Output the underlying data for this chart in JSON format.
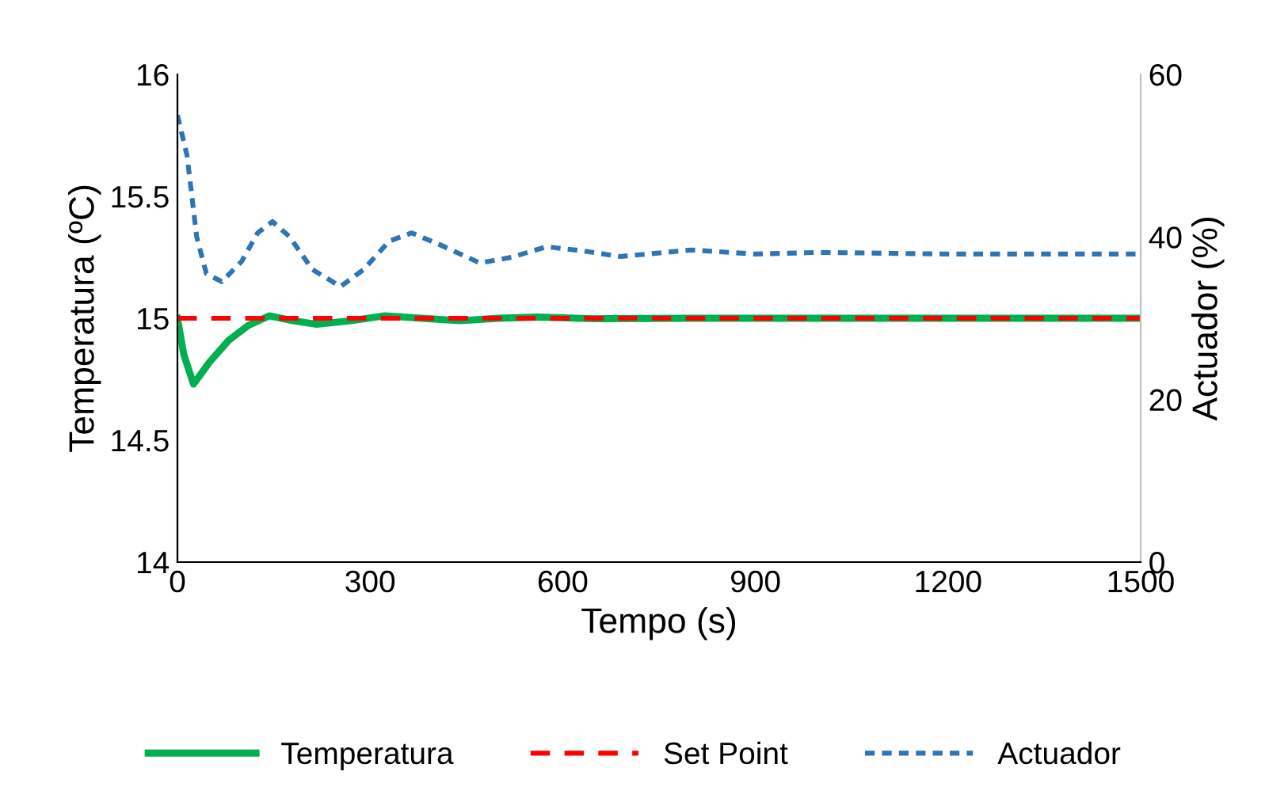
{
  "chart_data": {
    "type": "line",
    "xlabel": "Tempo (s)",
    "ylabel": "Temperatura (ºC)",
    "y2label": "Actuador (%)",
    "xlim": [
      0,
      1500
    ],
    "xticks": [
      0,
      300,
      600,
      900,
      1200,
      1500
    ],
    "ylim": [
      14,
      16
    ],
    "yticks": [
      14,
      14.5,
      15,
      15.5,
      16
    ],
    "y2lim": [
      0,
      60
    ],
    "y2ticks": [
      0,
      20,
      40,
      60
    ],
    "grid": false,
    "legend": "bottom",
    "series": [
      {
        "name": "Temperatura",
        "color": "#00b050",
        "line_style": "solid",
        "x": [
          0,
          10,
          25,
          50,
          80,
          110,
          143,
          180,
          217,
          270,
          323,
          380,
          440,
          500,
          560,
          650,
          800,
          1000,
          1200,
          1500
        ],
        "values": [
          15,
          14.85,
          14.73,
          14.82,
          14.91,
          14.97,
          15.01,
          14.99,
          14.975,
          14.99,
          15.01,
          15.0,
          14.99,
          15.0,
          15.005,
          14.998,
          15.0,
          15.0,
          15.0,
          15.0
        ]
      },
      {
        "name": "Set Point",
        "color": "#ff0000",
        "line_style": "dashed",
        "x": [
          0,
          1500
        ],
        "values": [
          15,
          15
        ]
      },
      {
        "name": "Actuador",
        "color": "#2e75b6",
        "line_style": "dotted",
        "axis": "y2",
        "x": [
          0,
          15,
          30,
          45,
          69,
          100,
          125,
          148,
          175,
          210,
          254,
          290,
          330,
          365,
          410,
          471,
          520,
          575,
          630,
          690,
          800,
          900,
          1000,
          1200,
          1500
        ],
        "values": [
          55,
          50,
          40,
          35.5,
          34.5,
          37,
          40.5,
          41.9,
          40,
          36,
          33.9,
          36,
          39.5,
          40.5,
          39,
          36.8,
          37.5,
          38.8,
          38.3,
          37.6,
          38.4,
          37.9,
          38.1,
          37.9,
          37.9
        ]
      }
    ]
  }
}
